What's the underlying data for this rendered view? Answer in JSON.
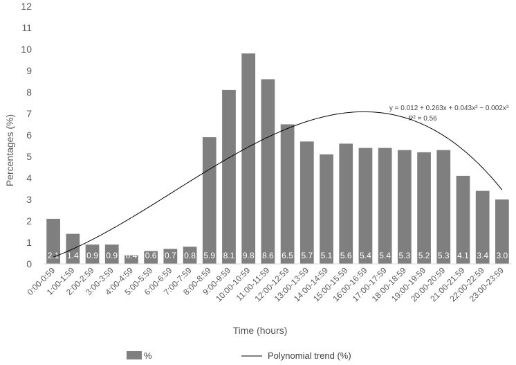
{
  "chart_data": {
    "type": "bar",
    "categories": [
      "0:00-0:59",
      "1:00-1:59",
      "2:00-2:59",
      "3:00-3:59",
      "4:00-4:59",
      "5:00-5:59",
      "6:00-6:59",
      "7:00-7:59",
      "8:00-8:59",
      "9:00-9:59",
      "10:00-10:59",
      "11:00-11:59",
      "12:00-12:59",
      "13:00-13:59",
      "14:00-14:59",
      "15:00-15:59",
      "16:00-16:59",
      "17:00-17:59",
      "18:00-18:59",
      "19:00-19:59",
      "20:00-20:59",
      "21:00-21:59",
      "22:00-22:59",
      "23:00-23:59"
    ],
    "values": [
      2.1,
      1.4,
      0.9,
      0.9,
      0.4,
      0.6,
      0.7,
      0.8,
      5.9,
      8.1,
      9.8,
      8.6,
      6.5,
      5.7,
      5.1,
      5.6,
      5.4,
      5.4,
      5.3,
      5.2,
      5.3,
      4.1,
      3.4,
      3.0
    ],
    "data_labels": [
      "2.1",
      "1.4",
      "0.9",
      "0.9",
      "0.4",
      "0.6",
      "0.7",
      "0.8",
      "5.9",
      "8.1",
      "9.8",
      "8.6",
      "6.5",
      "5.7",
      "5.1",
      "5.6",
      "5.4",
      "5.4",
      "5.3",
      "5.2",
      "5.3",
      "4.1",
      "3.4",
      "3.0"
    ],
    "xlabel": "Time (hours)",
    "ylabel": "Percentages (%)",
    "ylim": [
      0,
      12
    ],
    "yticks": [
      0,
      1,
      2,
      3,
      4,
      5,
      6,
      7,
      8,
      9,
      10,
      11,
      12
    ],
    "grid": false,
    "legend_position": "bottom",
    "series": [
      {
        "name": "%",
        "kind": "bar",
        "color": "#7f7f7f"
      },
      {
        "name": "Polynomial trend (%)",
        "kind": "line",
        "color": "#000000",
        "coefficients": [
          0.012,
          0.263,
          0.043,
          -0.002
        ]
      }
    ],
    "trendline": {
      "equation": "y = 0.012 + 0.263x + 0.043x² − 0.002x³",
      "r_squared": "R² = 0.56"
    }
  }
}
